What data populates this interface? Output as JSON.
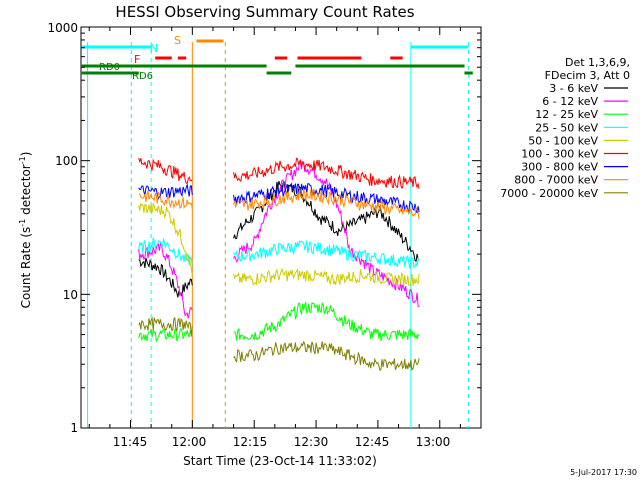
{
  "chart_data": {
    "type": "line",
    "title": "HESSI Observing Summary Count Rates",
    "xlabel": "Start Time (23-Oct-14 11:33:02)",
    "ylabel_main": "Count Rate (s",
    "ylabel_sup1": "-1",
    "ylabel_mid": " detector",
    "ylabel_sup2": "-1",
    "ylabel_end": ")",
    "footer": "5-Jul-2017 17:30",
    "x_range_minutes": [
      "11:33",
      "13:10"
    ],
    "ylim": [
      1,
      1000
    ],
    "yscale": "log",
    "x_ticks": [
      {
        "minute": 45,
        "label": "11:45"
      },
      {
        "minute": 60,
        "label": "12:00"
      },
      {
        "minute": 75,
        "label": "12:15"
      },
      {
        "minute": 90,
        "label": "12:30"
      },
      {
        "minute": 105,
        "label": "12:45"
      },
      {
        "minute": 120,
        "label": "13:00"
      }
    ],
    "y_ticks": [
      {
        "value": 1,
        "label": "1"
      },
      {
        "value": 10,
        "label": "10"
      },
      {
        "value": 100,
        "label": "100"
      },
      {
        "value": 1000,
        "label": "1000"
      }
    ],
    "legend_header": [
      "Det 1,3,6,9,",
      "FDecim 3, Att 0"
    ],
    "series": [
      {
        "name": "3 - 6 keV",
        "color": "#000000",
        "values": [
          18,
          16,
          10,
          14,
          22,
          30,
          42,
          65,
          60,
          38,
          30,
          35,
          42,
          28,
          18
        ]
      },
      {
        "name": "6 - 12 keV",
        "color": "#ff00ff",
        "values": [
          20,
          22,
          7,
          9,
          18,
          25,
          60,
          95,
          70,
          22,
          15,
          12,
          9
        ]
      },
      {
        "name": "12 - 25 keV",
        "color": "#00ff00",
        "values": [
          5,
          5,
          5,
          5,
          5,
          5,
          6,
          8,
          8,
          6,
          5,
          5,
          5
        ]
      },
      {
        "name": "25 - 50 keV",
        "color": "#00ffff",
        "values": [
          22,
          25,
          18,
          18,
          19,
          20,
          22,
          23,
          22,
          20,
          19,
          18,
          17
        ]
      },
      {
        "name": "50 - 100 keV",
        "color": "#cccc00",
        "values": [
          45,
          42,
          12,
          13,
          13,
          14,
          14,
          13,
          14,
          13,
          13
        ]
      },
      {
        "name": "100 - 300 keV",
        "color": "#ff0000",
        "values": [
          100,
          90,
          75,
          75,
          75,
          80,
          90,
          95,
          90,
          80,
          72,
          70,
          68
        ]
      },
      {
        "name": "300 - 800 keV",
        "color": "#0000ff",
        "values": [
          60,
          58,
          60,
          56,
          52,
          55,
          60,
          62,
          60,
          55,
          52,
          48,
          45
        ]
      },
      {
        "name": "800 - 7000 keV",
        "color": "#ff8800",
        "values": [
          55,
          52,
          48,
          46,
          46,
          48,
          52,
          56,
          54,
          50,
          46,
          43,
          40
        ]
      },
      {
        "name": "7000 - 20000 keV",
        "color": "#808000",
        "values": [
          6,
          6,
          6,
          3.5,
          3.5,
          3.5,
          4,
          4,
          4,
          3.5,
          3,
          3,
          3
        ]
      }
    ],
    "flags": [
      {
        "label": "N",
        "color": "#00ffff"
      },
      {
        "label": "S",
        "color": "#ff8800"
      },
      {
        "label": "F",
        "color": "#ff0000"
      },
      {
        "label": "RD0",
        "color": "#008000"
      },
      {
        "label": "RD6",
        "color": "#008000"
      }
    ],
    "grid": false,
    "legend_placement": "right"
  }
}
